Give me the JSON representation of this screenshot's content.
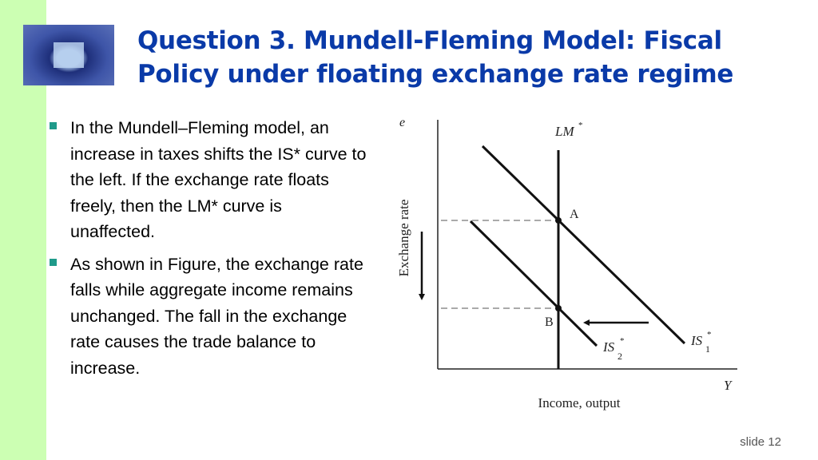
{
  "title": "Question 3. Mundell-Fleming Model: Fiscal Policy under floating exchange rate regime",
  "bullets": [
    "In the Mundell–Fleming model, an increase in taxes shifts the IS* curve to the left. If the exchange rate floats freely, then the LM* curve is unaffected.",
    "As shown in Figure, the exchange rate falls while aggregate income remains unchanged. The fall in the exchange rate causes the trade balance to increase."
  ],
  "figure": {
    "y_axis_symbol": "e",
    "y_axis_label": "Exchange rate",
    "x_axis_symbol": "Y",
    "x_axis_label": "Income, output",
    "lm_label": "LM",
    "is1_label": "IS",
    "is1_sub": "1",
    "is2_label": "IS",
    "is2_sub": "2",
    "star": "*",
    "point_a": "A",
    "point_b": "B"
  },
  "slide_number": "slide 12",
  "colors": {
    "title": "#0a3aa8",
    "sidebar": "#ccffb3",
    "bullet": "#1f9a8a"
  }
}
